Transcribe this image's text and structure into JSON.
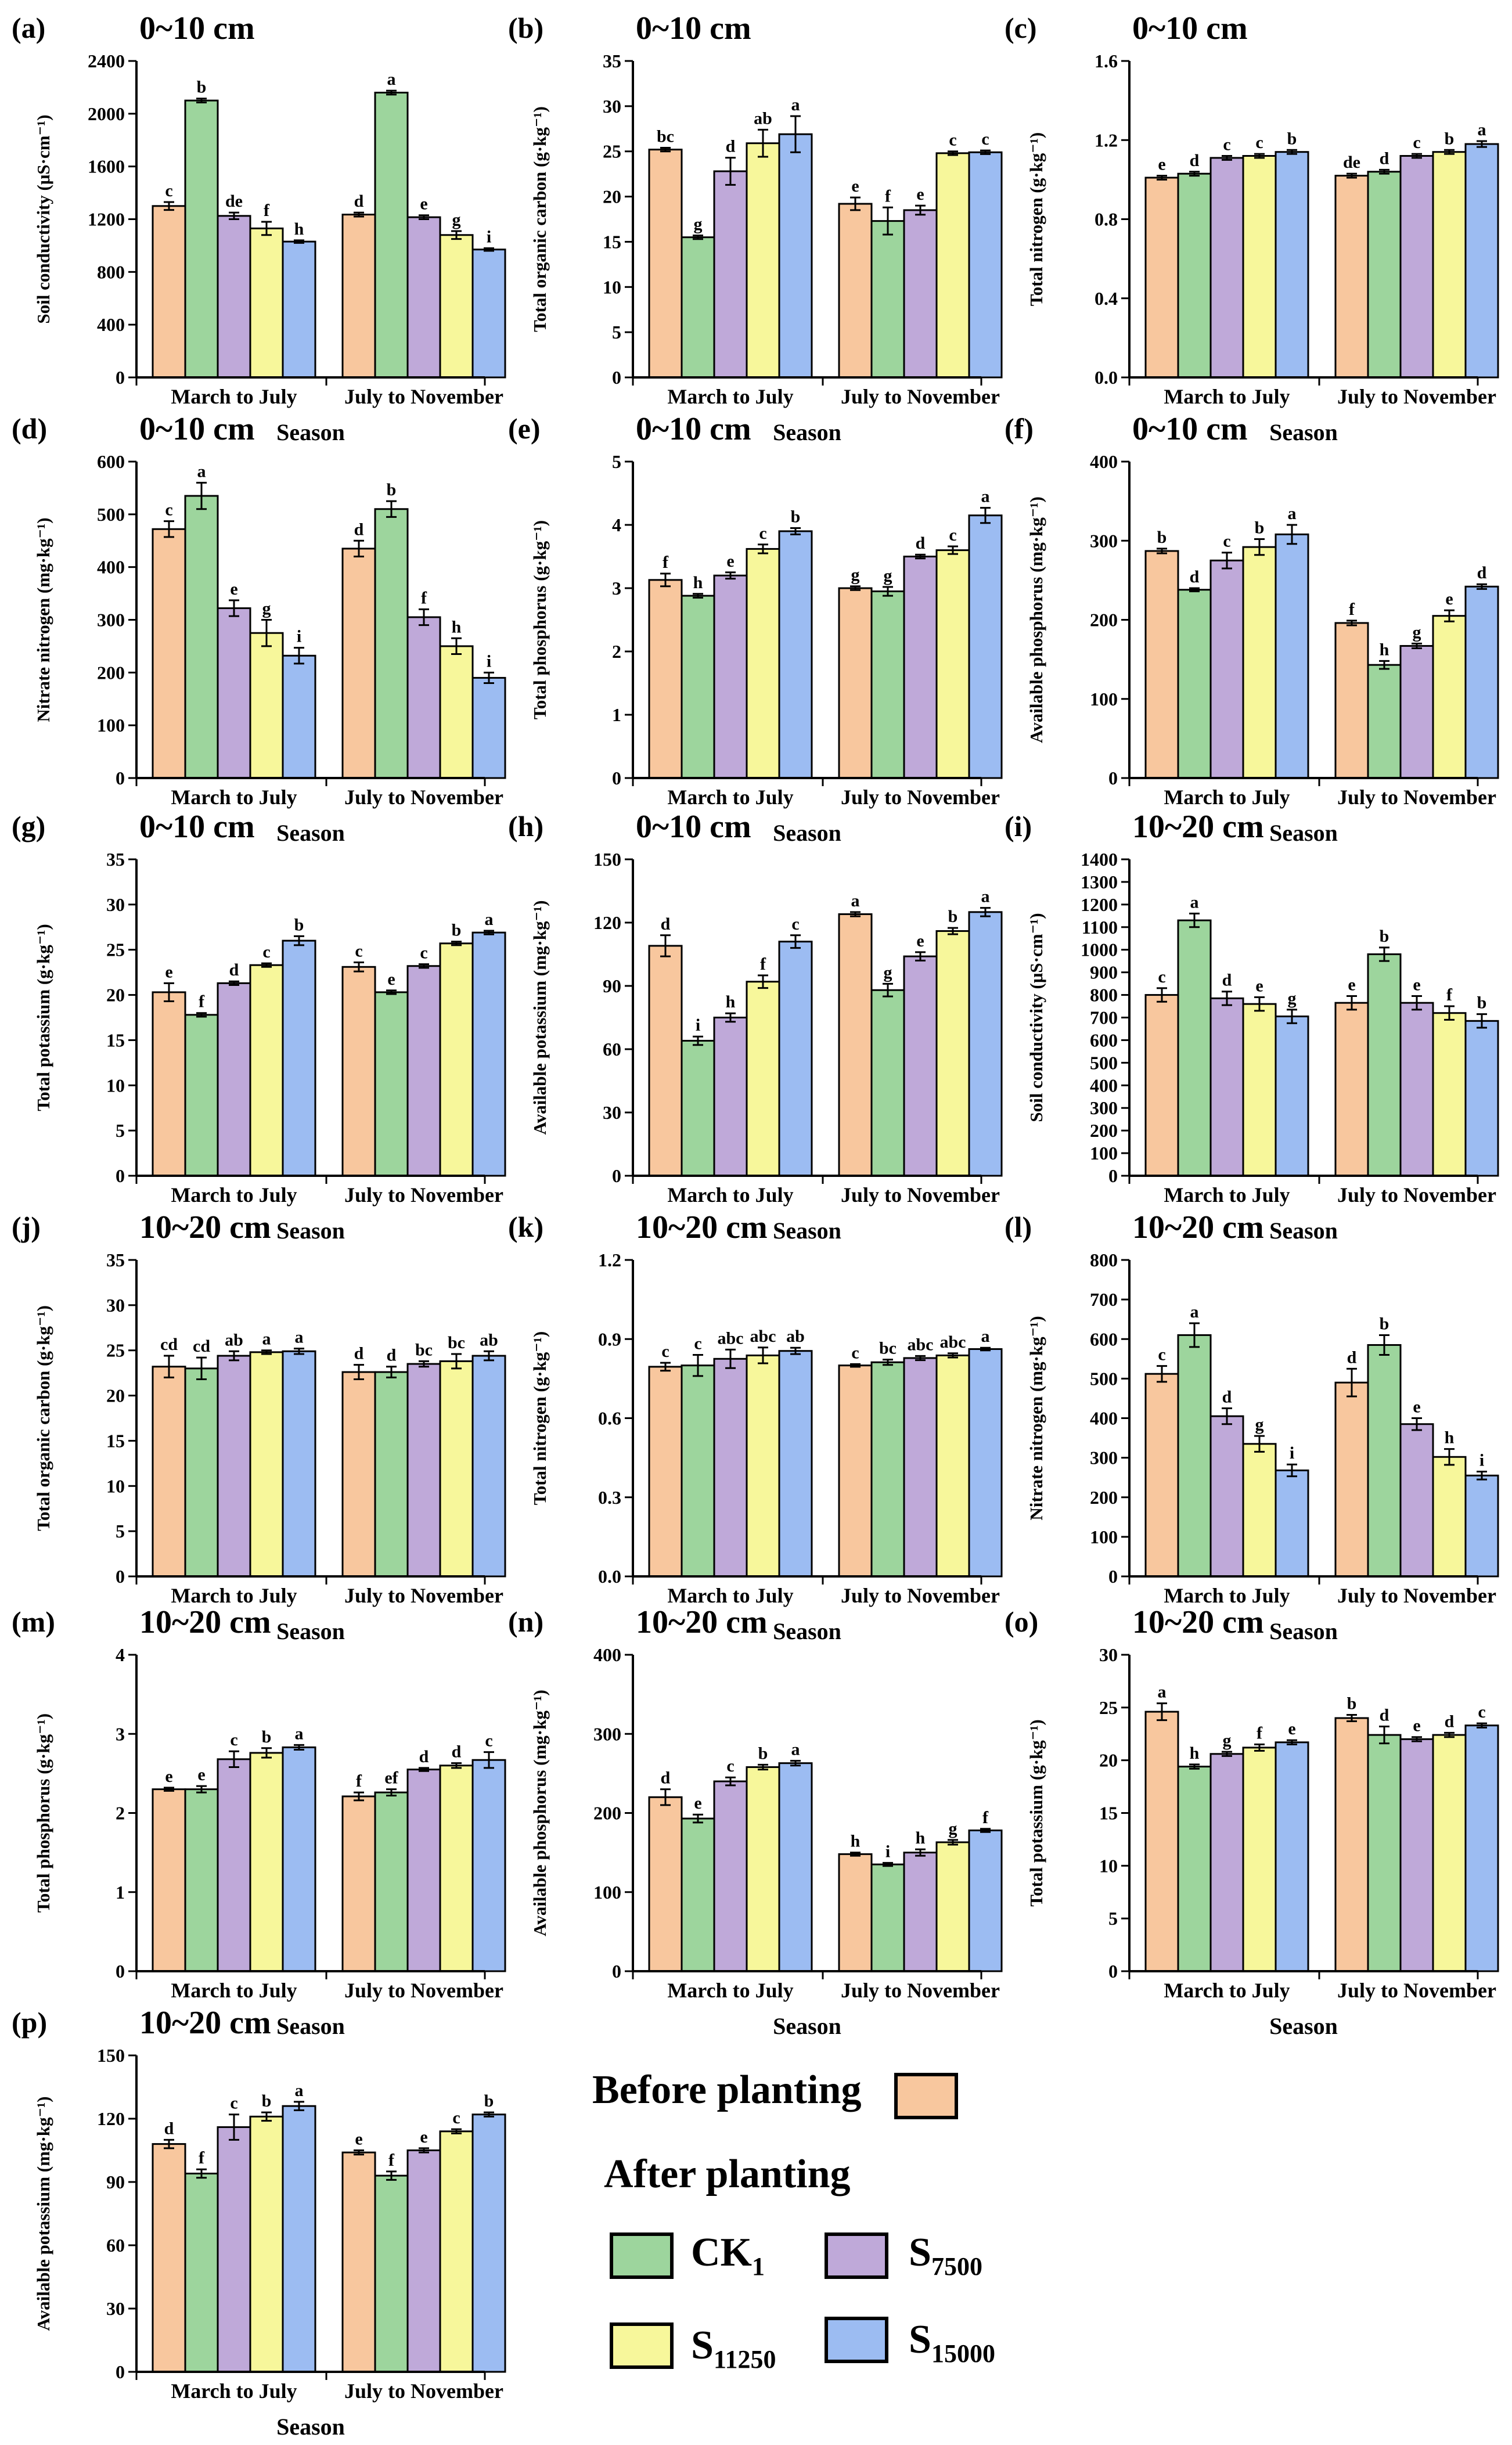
{
  "shared": {
    "x_title": "Season",
    "seasons": [
      "March to July",
      "July to November"
    ],
    "treatments": [
      "Before planting",
      "CK1",
      "S7500",
      "S11250",
      "S15000"
    ],
    "colors": [
      "#F8C79E",
      "#9DD59D",
      "#BFA9D9",
      "#F7F79B",
      "#9CBCF2"
    ]
  },
  "legend": {
    "before_label": "Before planting",
    "after_label": "After planting",
    "ck_main": "CK",
    "ck_sub": "1",
    "s7500_main": "S",
    "s7500_sub": "7500",
    "s11250_main": "S",
    "s11250_sub": "11250",
    "s15000_main": "S",
    "s15000_sub": "15000"
  },
  "chart_data": [
    {
      "panel": "(a)",
      "depth": "0~10 cm",
      "type": "bar",
      "ylabel": "Soil conductivity (μS·cm⁻¹)",
      "ylim": [
        0,
        2400
      ],
      "yticks": [
        0,
        400,
        800,
        1200,
        1600,
        2000,
        2400
      ],
      "values": [
        [
          1300,
          2100,
          1225,
          1130,
          1030
        ],
        [
          1235,
          2160,
          1215,
          1080,
          970
        ]
      ],
      "errors": [
        [
          30,
          15,
          25,
          50,
          10
        ],
        [
          15,
          15,
          15,
          30,
          10
        ]
      ],
      "letters": [
        [
          "c",
          "b",
          "de",
          "f",
          "h"
        ],
        [
          "d",
          "a",
          "e",
          "g",
          "i"
        ]
      ]
    },
    {
      "panel": "(b)",
      "depth": "0~10 cm",
      "type": "bar",
      "ylabel": "Total organic carbon (g·kg⁻¹)",
      "ylim": [
        0,
        35
      ],
      "yticks": [
        0,
        5,
        10,
        15,
        20,
        25,
        30,
        35
      ],
      "values": [
        [
          25.2,
          15.5,
          22.8,
          25.9,
          26.9
        ],
        [
          19.2,
          17.3,
          18.5,
          24.8,
          24.9
        ]
      ],
      "errors": [
        [
          0.2,
          0.2,
          1.5,
          1.5,
          2.0
        ],
        [
          0.7,
          1.5,
          0.5,
          0.2,
          0.2
        ]
      ],
      "letters": [
        [
          "bc",
          "g",
          "d",
          "ab",
          "a"
        ],
        [
          "e",
          "f",
          "e",
          "c",
          "c"
        ]
      ]
    },
    {
      "panel": "(c)",
      "depth": "0~10 cm",
      "type": "bar",
      "ylabel": "Total nitrogen (g·kg⁻¹)",
      "ylim": [
        0,
        1.6
      ],
      "yticks": [
        "0.0",
        "0.4",
        "0.8",
        "1.2",
        "1.6"
      ],
      "values": [
        [
          1.01,
          1.03,
          1.11,
          1.12,
          1.14
        ],
        [
          1.02,
          1.04,
          1.12,
          1.14,
          1.18
        ]
      ],
      "errors": [
        [
          0.01,
          0.01,
          0.01,
          0.01,
          0.01
        ],
        [
          0.01,
          0.01,
          0.01,
          0.01,
          0.015
        ]
      ],
      "letters": [
        [
          "e",
          "d",
          "c",
          "c",
          "b"
        ],
        [
          "de",
          "d",
          "c",
          "b",
          "a"
        ]
      ]
    },
    {
      "panel": "(d)",
      "depth": "0~10 cm",
      "type": "bar",
      "ylabel": "Nitrate nitrogen (mg·kg⁻¹)",
      "ylim": [
        0,
        600
      ],
      "yticks": [
        0,
        100,
        200,
        300,
        400,
        500,
        600
      ],
      "values": [
        [
          472,
          535,
          322,
          275,
          232
        ],
        [
          435,
          510,
          305,
          250,
          190
        ]
      ],
      "errors": [
        [
          15,
          25,
          15,
          25,
          15
        ],
        [
          15,
          15,
          15,
          15,
          10
        ]
      ],
      "letters": [
        [
          "c",
          "a",
          "e",
          "g",
          "i"
        ],
        [
          "d",
          "b",
          "f",
          "h",
          "i"
        ]
      ]
    },
    {
      "panel": "(e)",
      "depth": "0~10 cm",
      "type": "bar",
      "ylabel": "Total phosphorus (g·kg⁻¹)",
      "ylim": [
        0,
        5
      ],
      "yticks": [
        0,
        1,
        2,
        3,
        4,
        5
      ],
      "values": [
        [
          3.13,
          2.88,
          3.2,
          3.62,
          3.9
        ],
        [
          3.0,
          2.95,
          3.5,
          3.6,
          4.15
        ]
      ],
      "errors": [
        [
          0.1,
          0.03,
          0.05,
          0.07,
          0.05
        ],
        [
          0.03,
          0.07,
          0.03,
          0.06,
          0.12
        ]
      ],
      "letters": [
        [
          "f",
          "h",
          "e",
          "c",
          "b"
        ],
        [
          "g",
          "g",
          "d",
          "c",
          "a"
        ]
      ]
    },
    {
      "panel": "(f)",
      "depth": "0~10 cm",
      "type": "bar",
      "ylabel": "Available phosphorus (mg·kg⁻¹)",
      "ylim": [
        0,
        400
      ],
      "yticks": [
        0,
        100,
        200,
        300,
        400
      ],
      "values": [
        [
          287,
          238,
          275,
          292,
          308
        ],
        [
          196,
          143,
          167,
          205,
          242
        ]
      ],
      "errors": [
        [
          3,
          2,
          10,
          10,
          12
        ],
        [
          3,
          5,
          3,
          7,
          3
        ]
      ],
      "letters": [
        [
          "b",
          "d",
          "c",
          "b",
          "a"
        ],
        [
          "f",
          "h",
          "g",
          "e",
          "d"
        ]
      ]
    },
    {
      "panel": "(g)",
      "depth": "0~10 cm",
      "type": "bar",
      "ylabel": "Total potassium (g·kg⁻¹)",
      "ylim": [
        0,
        35
      ],
      "yticks": [
        0,
        5,
        10,
        15,
        20,
        25,
        30,
        35
      ],
      "values": [
        [
          20.3,
          17.8,
          21.3,
          23.3,
          26.0
        ],
        [
          23.1,
          20.3,
          23.2,
          25.7,
          26.9
        ]
      ],
      "errors": [
        [
          1.0,
          0.2,
          0.2,
          0.2,
          0.5
        ],
        [
          0.5,
          0.2,
          0.2,
          0.2,
          0.2
        ]
      ],
      "letters": [
        [
          "e",
          "f",
          "d",
          "c",
          "b"
        ],
        [
          "c",
          "e",
          "c",
          "b",
          "a"
        ]
      ]
    },
    {
      "panel": "(h)",
      "depth": "0~10 cm",
      "type": "bar",
      "ylabel": "Available potassium (mg·kg⁻¹)",
      "ylim": [
        0,
        150
      ],
      "yticks": [
        0,
        30,
        60,
        90,
        120,
        150
      ],
      "values": [
        [
          109,
          64,
          75,
          92,
          111
        ],
        [
          124,
          88,
          104,
          116,
          125
        ]
      ],
      "errors": [
        [
          5,
          2,
          2,
          3,
          3
        ],
        [
          1,
          3,
          2,
          1.5,
          2
        ]
      ],
      "letters": [
        [
          "d",
          "i",
          "h",
          "f",
          "c"
        ],
        [
          "a",
          "g",
          "e",
          "b",
          "a"
        ]
      ]
    },
    {
      "panel": "(i)",
      "depth": "10~20 cm",
      "type": "bar",
      "ylabel": "Soil conductivity (μS·cm⁻¹)",
      "ylim": [
        0,
        1400
      ],
      "yticks": [
        0,
        100,
        200,
        300,
        400,
        500,
        600,
        700,
        800,
        900,
        1000,
        1100,
        1200,
        1300,
        1400
      ],
      "values": [
        [
          800,
          1130,
          785,
          760,
          705
        ],
        [
          765,
          980,
          765,
          720,
          685
        ]
      ],
      "errors": [
        [
          30,
          30,
          30,
          30,
          30
        ],
        [
          30,
          30,
          30,
          30,
          30
        ]
      ],
      "letters": [
        [
          "c",
          "a",
          "d",
          "e",
          "g"
        ],
        [
          "e",
          "b",
          "e",
          "f",
          "b"
        ]
      ]
    },
    {
      "panel": "(j)",
      "depth": "10~20 cm",
      "type": "bar",
      "ylabel": "Total organic carbon (g·kg⁻¹)",
      "ylim": [
        0,
        35
      ],
      "yticks": [
        0,
        5,
        10,
        15,
        20,
        25,
        30,
        35
      ],
      "values": [
        [
          23.2,
          23.0,
          24.4,
          24.8,
          24.9
        ],
        [
          22.6,
          22.6,
          23.5,
          23.8,
          24.4
        ]
      ],
      "errors": [
        [
          1.2,
          1.2,
          0.5,
          0.2,
          0.3
        ],
        [
          0.8,
          0.6,
          0.3,
          0.8,
          0.5
        ]
      ],
      "letters": [
        [
          "cd",
          "cd",
          "ab",
          "a",
          "a"
        ],
        [
          "d",
          "d",
          "bc",
          "bc",
          "ab"
        ]
      ]
    },
    {
      "panel": "(k)",
      "depth": "10~20 cm",
      "type": "bar",
      "ylabel": "Total nitrogen (g·kg⁻¹)",
      "ylim": [
        0,
        1.2
      ],
      "yticks": [
        "0.0",
        "0.3",
        "0.6",
        "0.9",
        "1.2"
      ],
      "values": [
        [
          0.795,
          0.8,
          0.825,
          0.838,
          0.855
        ],
        [
          0.8,
          0.812,
          0.828,
          0.838,
          0.862
        ]
      ],
      "errors": [
        [
          0.015,
          0.04,
          0.035,
          0.03,
          0.012
        ],
        [
          0.005,
          0.01,
          0.008,
          0.008,
          0.005
        ]
      ],
      "letters": [
        [
          "c",
          "c",
          "abc",
          "abc",
          "ab"
        ],
        [
          "c",
          "bc",
          "abc",
          "abc",
          "a"
        ]
      ]
    },
    {
      "panel": "(l)",
      "depth": "10~20 cm",
      "type": "bar",
      "ylabel": "Nitrate nitrogen (mg·kg⁻¹)",
      "ylim": [
        0,
        800
      ],
      "yticks": [
        0,
        100,
        200,
        300,
        400,
        500,
        600,
        700,
        800
      ],
      "values": [
        [
          512,
          610,
          405,
          335,
          268
        ],
        [
          490,
          585,
          385,
          302,
          255
        ]
      ],
      "errors": [
        [
          20,
          30,
          20,
          20,
          15
        ],
        [
          35,
          25,
          15,
          20,
          10
        ]
      ],
      "letters": [
        [
          "c",
          "a",
          "d",
          "g",
          "i"
        ],
        [
          "d",
          "b",
          "e",
          "h",
          "i"
        ]
      ]
    },
    {
      "panel": "(m)",
      "depth": "10~20 cm",
      "type": "bar",
      "ylabel": "Total phosphorus (g·kg⁻¹)",
      "ylim": [
        0,
        4
      ],
      "yticks": [
        0,
        1,
        2,
        3,
        4
      ],
      "values": [
        [
          2.3,
          2.3,
          2.68,
          2.76,
          2.83
        ],
        [
          2.21,
          2.26,
          2.55,
          2.6,
          2.67
        ]
      ],
      "errors": [
        [
          0.02,
          0.04,
          0.1,
          0.06,
          0.03
        ],
        [
          0.05,
          0.04,
          0.02,
          0.03,
          0.1
        ]
      ],
      "letters": [
        [
          "e",
          "e",
          "c",
          "b",
          "a"
        ],
        [
          "f",
          "ef",
          "d",
          "d",
          "c"
        ]
      ]
    },
    {
      "panel": "(n)",
      "depth": "10~20 cm",
      "type": "bar",
      "ylabel": "Available phosphorus (mg·kg⁻¹)",
      "ylim": [
        0,
        400
      ],
      "yticks": [
        0,
        100,
        200,
        300,
        400
      ],
      "values": [
        [
          220,
          193,
          240,
          258,
          263
        ],
        [
          148,
          135,
          150,
          163,
          178
        ]
      ],
      "errors": [
        [
          10,
          5,
          5,
          3,
          3
        ],
        [
          2,
          2,
          4,
          3,
          2
        ]
      ],
      "letters": [
        [
          "d",
          "e",
          "c",
          "b",
          "a"
        ],
        [
          "h",
          "i",
          "h",
          "g",
          "f"
        ]
      ]
    },
    {
      "panel": "(o)",
      "depth": "10~20 cm",
      "type": "bar",
      "ylabel": "Total potassium (g·kg⁻¹)",
      "ylim": [
        0,
        30
      ],
      "yticks": [
        0,
        5,
        10,
        15,
        20,
        25,
        30
      ],
      "values": [
        [
          24.6,
          19.4,
          20.6,
          21.2,
          21.7
        ],
        [
          24.0,
          22.4,
          22.0,
          22.4,
          23.3
        ]
      ],
      "errors": [
        [
          0.8,
          0.2,
          0.2,
          0.3,
          0.2
        ],
        [
          0.3,
          0.8,
          0.2,
          0.2,
          0.2
        ]
      ],
      "letters": [
        [
          "a",
          "h",
          "g",
          "f",
          "e"
        ],
        [
          "b",
          "d",
          "e",
          "d",
          "c"
        ]
      ]
    },
    {
      "panel": "(p)",
      "depth": "10~20 cm",
      "type": "bar",
      "ylabel": "Available potassium (mg·kg⁻¹)",
      "ylim": [
        0,
        150
      ],
      "yticks": [
        0,
        30,
        60,
        90,
        120,
        150
      ],
      "values": [
        [
          108,
          94,
          116,
          121,
          126
        ],
        [
          104,
          93,
          105,
          114,
          122
        ]
      ],
      "errors": [
        [
          2,
          2,
          6,
          2,
          2
        ],
        [
          1,
          2,
          1,
          1,
          1
        ]
      ],
      "letters": [
        [
          "d",
          "f",
          "c",
          "b",
          "a"
        ],
        [
          "e",
          "f",
          "e",
          "c",
          "b"
        ]
      ]
    }
  ]
}
